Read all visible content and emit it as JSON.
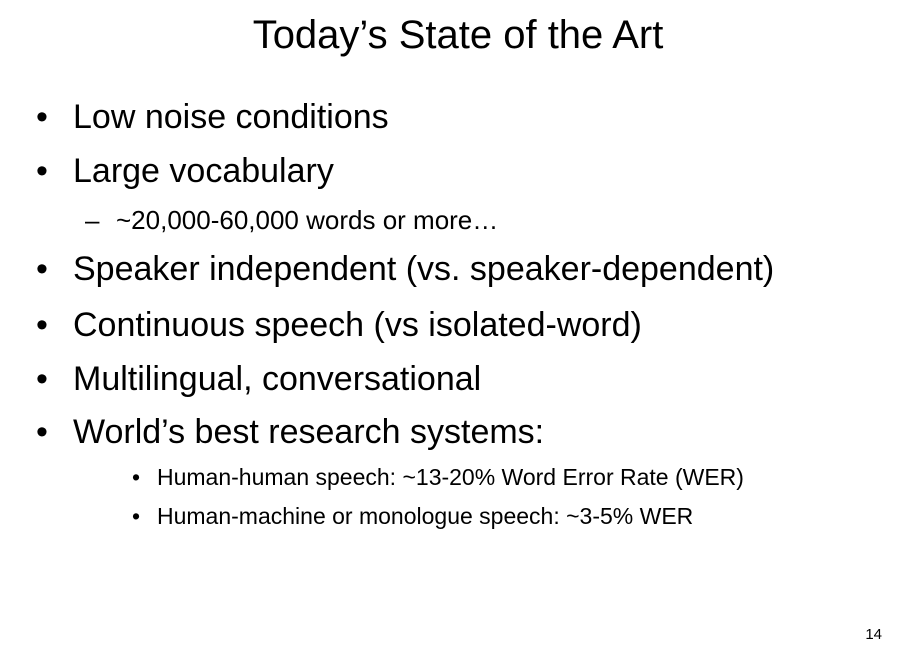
{
  "slide": {
    "title": "Today’s State of the Art",
    "bullets": [
      {
        "marker": "•",
        "text": "Low noise conditions"
      },
      {
        "marker": "•",
        "text": "Large vocabulary"
      },
      {
        "marker": "–",
        "text": "~20,000-60,000  words or more…"
      },
      {
        "marker": "•",
        "text": "Speaker independent (vs. speaker-dependent)"
      },
      {
        "marker": "•",
        "text": "Continuous speech (vs isolated-word)"
      },
      {
        "marker": "•",
        "text": "Multilingual, conversational"
      },
      {
        "marker": "•",
        "text": "World’s best research systems:"
      },
      {
        "marker": "•",
        "text": "Human-human speech:  ~13-20% Word Error Rate (WER)"
      },
      {
        "marker": "•",
        "text": "Human-machine or monologue speech: ~3-5% WER"
      }
    ],
    "page_number": "14"
  }
}
